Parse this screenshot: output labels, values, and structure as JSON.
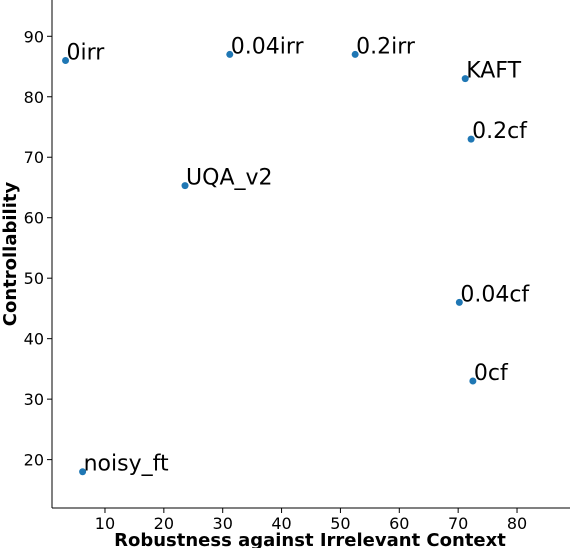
{
  "chart_data": {
    "type": "scatter",
    "xlabel": "Robustness against Irrelevant Context",
    "ylabel": "Controllability",
    "xlim": [
      1,
      89
    ],
    "ylim": [
      12,
      96
    ],
    "xticks": [
      10,
      20,
      30,
      40,
      50,
      60,
      70,
      80
    ],
    "yticks": [
      20,
      30,
      40,
      50,
      60,
      70,
      80,
      90
    ],
    "grid": false,
    "marker_color": "#1f77b4",
    "points": [
      {
        "label": "0irr",
        "x": 3.3,
        "y": 86.0
      },
      {
        "label": "0.04irr",
        "x": 31.2,
        "y": 87.0
      },
      {
        "label": "0.2irr",
        "x": 52.5,
        "y": 87.0
      },
      {
        "label": "KAFT",
        "x": 71.2,
        "y": 83.0
      },
      {
        "label": "0.2cf",
        "x": 72.2,
        "y": 73.0
      },
      {
        "label": "UQA_v2",
        "x": 23.6,
        "y": 65.3
      },
      {
        "label": "0.04cf",
        "x": 70.2,
        "y": 46.0
      },
      {
        "label": "0cf",
        "x": 72.5,
        "y": 33.0
      },
      {
        "label": "noisy_ft",
        "x": 6.2,
        "y": 18.0
      }
    ]
  }
}
